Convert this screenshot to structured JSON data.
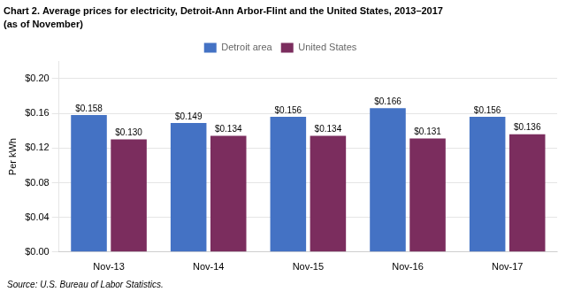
{
  "chart_data": {
    "type": "bar",
    "title": "Chart 2. Average prices for electricity, Detroit-Ann Arbor-Flint and the United States, 2013–2017",
    "subtitle": "(as of November)",
    "ylabel": "Per kWh",
    "source": "Source: U.S. Bureau of Labor Statistics.",
    "categories": [
      "Nov-13",
      "Nov-14",
      "Nov-15",
      "Nov-16",
      "Nov-17"
    ],
    "series": [
      {
        "name": "Detroit area",
        "color": "#4472C4",
        "values": [
          0.158,
          0.149,
          0.156,
          0.166,
          0.156
        ],
        "value_labels": [
          "$0.158",
          "$0.149",
          "$0.156",
          "$0.166",
          "$0.156"
        ]
      },
      {
        "name": "United States",
        "color": "#7B2D5E",
        "values": [
          0.13,
          0.134,
          0.134,
          0.131,
          0.136
        ],
        "value_labels": [
          "$0.130",
          "$0.134",
          "$0.134",
          "$0.131",
          "$0.136"
        ]
      }
    ],
    "ylim": [
      0,
      0.22
    ],
    "yticks": [
      {
        "value": 0.0,
        "label": "$0.00"
      },
      {
        "value": 0.04,
        "label": "$0.04"
      },
      {
        "value": 0.08,
        "label": "$0.08"
      },
      {
        "value": 0.12,
        "label": "$0.12"
      },
      {
        "value": 0.16,
        "label": "$0.16"
      },
      {
        "value": 0.2,
        "label": "$0.20"
      }
    ],
    "grid": true,
    "legend": "top",
    "data_labels": true
  }
}
